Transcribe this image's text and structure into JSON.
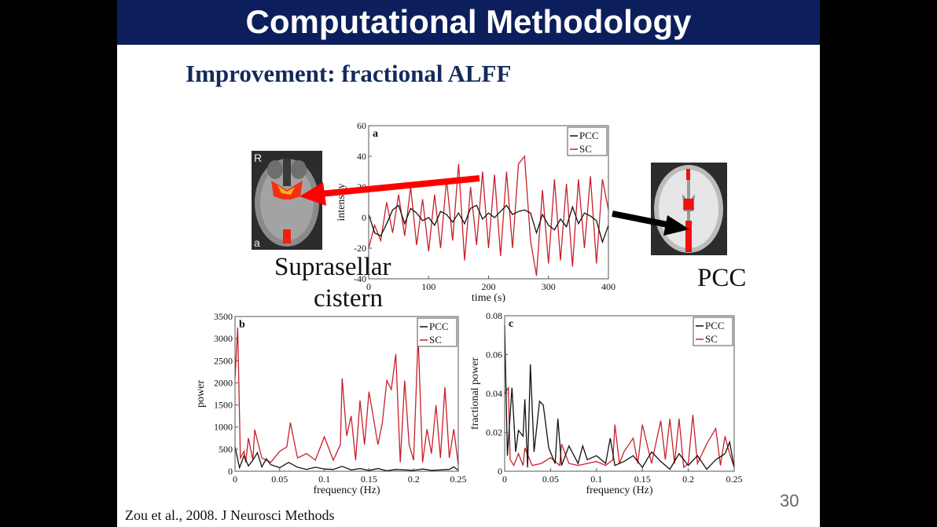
{
  "slide": {
    "title": "Computational Methodology",
    "subtitle": "Improvement: fractional ALFF",
    "label_left_1": "Suprasellar",
    "label_left_2": "cistern",
    "label_right": "PCC",
    "footer": "Zou et al., 2008. J Neurosci Methods",
    "page_number": "30",
    "colors": {
      "title_bg": "#0c1f5c",
      "subtitle": "#142a5e",
      "pcc": "#111111",
      "sc": "#c8202a",
      "arrow_red": "#ff0000"
    }
  },
  "chart_data": [
    {
      "type": "line",
      "panel": "a",
      "xlabel": "time (s)",
      "ylabel": "intensity",
      "xlim": [
        0,
        400
      ],
      "ylim": [
        -40,
        60
      ],
      "xticks": [
        0,
        100,
        200,
        300,
        400
      ],
      "yticks": [
        -40,
        -20,
        0,
        20,
        40,
        60
      ],
      "legend": [
        "PCC",
        "SC"
      ],
      "legend_position": "upper right",
      "series": [
        {
          "name": "PCC",
          "x": [
            0,
            10,
            20,
            30,
            40,
            50,
            60,
            70,
            80,
            90,
            100,
            110,
            120,
            130,
            140,
            150,
            160,
            170,
            180,
            190,
            200,
            210,
            220,
            230,
            240,
            250,
            260,
            270,
            280,
            290,
            300,
            310,
            320,
            330,
            340,
            350,
            360,
            370,
            380,
            390,
            400
          ],
          "values": [
            2,
            -10,
            -12,
            -4,
            5,
            8,
            -4,
            6,
            3,
            -2,
            0,
            -5,
            4,
            2,
            -3,
            3,
            -4,
            6,
            8,
            -1,
            3,
            0,
            4,
            8,
            2,
            4,
            5,
            3,
            -10,
            2,
            -5,
            -8,
            -1,
            -6,
            7,
            -4,
            3,
            1,
            -2,
            -16,
            -5
          ]
        },
        {
          "name": "SC",
          "x": [
            0,
            10,
            20,
            30,
            40,
            50,
            60,
            70,
            80,
            90,
            100,
            110,
            120,
            130,
            140,
            150,
            160,
            170,
            180,
            190,
            200,
            210,
            220,
            230,
            240,
            250,
            260,
            270,
            280,
            290,
            300,
            310,
            320,
            330,
            340,
            350,
            360,
            370,
            380,
            390,
            400
          ],
          "values": [
            -20,
            -5,
            -15,
            10,
            -10,
            15,
            -12,
            20,
            -18,
            12,
            -22,
            15,
            -20,
            25,
            -15,
            35,
            -28,
            20,
            -18,
            30,
            -20,
            28,
            -25,
            30,
            -20,
            35,
            40,
            -15,
            -38,
            18,
            -30,
            25,
            -28,
            22,
            -32,
            25,
            -20,
            27,
            -30,
            25,
            5
          ]
        }
      ]
    },
    {
      "type": "line",
      "panel": "b",
      "xlabel": "frequency (Hz)",
      "ylabel": "power",
      "xlim": [
        0,
        0.25
      ],
      "ylim": [
        0,
        3500
      ],
      "xticks": [
        0,
        0.05,
        0.1,
        0.15,
        0.2,
        0.25
      ],
      "yticks": [
        0,
        500,
        1000,
        1500,
        2000,
        2500,
        3000,
        3500
      ],
      "legend": [
        "PCC",
        "SC"
      ],
      "legend_position": "upper right",
      "series": [
        {
          "name": "PCC",
          "x": [
            0,
            0.005,
            0.01,
            0.015,
            0.02,
            0.025,
            0.03,
            0.035,
            0.04,
            0.05,
            0.06,
            0.07,
            0.08,
            0.09,
            0.1,
            0.11,
            0.12,
            0.13,
            0.14,
            0.15,
            0.16,
            0.17,
            0.18,
            0.19,
            0.2,
            0.21,
            0.22,
            0.23,
            0.24,
            0.245,
            0.25
          ],
          "values": [
            550,
            80,
            350,
            120,
            250,
            420,
            100,
            280,
            150,
            80,
            200,
            90,
            40,
            90,
            50,
            40,
            110,
            30,
            60,
            20,
            60,
            10,
            40,
            30,
            20,
            50,
            20,
            30,
            40,
            100,
            20
          ]
        },
        {
          "name": "SC",
          "x": [
            0,
            0.003,
            0.006,
            0.01,
            0.012,
            0.015,
            0.02,
            0.022,
            0.03,
            0.04,
            0.05,
            0.058,
            0.062,
            0.07,
            0.08,
            0.09,
            0.1,
            0.11,
            0.118,
            0.12,
            0.125,
            0.13,
            0.135,
            0.14,
            0.145,
            0.15,
            0.16,
            0.165,
            0.17,
            0.175,
            0.18,
            0.185,
            0.19,
            0.195,
            0.2,
            0.205,
            0.21,
            0.215,
            0.22,
            0.225,
            0.23,
            0.235,
            0.24,
            0.245,
            0.25
          ],
          "values": [
            2100,
            3250,
            300,
            450,
            200,
            750,
            250,
            940,
            300,
            200,
            450,
            550,
            1100,
            300,
            400,
            250,
            780,
            250,
            600,
            2100,
            800,
            1250,
            250,
            1600,
            600,
            1800,
            600,
            1100,
            2050,
            1850,
            2650,
            200,
            2050,
            600,
            250,
            3050,
            200,
            950,
            400,
            1500,
            300,
            1900,
            300,
            950,
            150
          ]
        }
      ]
    },
    {
      "type": "line",
      "panel": "c",
      "xlabel": "frequency (Hz)",
      "ylabel": "fractional power",
      "xlim": [
        0,
        0.25
      ],
      "ylim": [
        0,
        0.08
      ],
      "xticks": [
        0,
        0.05,
        0.1,
        0.15,
        0.2,
        0.25
      ],
      "yticks": [
        0,
        0.02,
        0.04,
        0.06,
        0.08
      ],
      "legend": [
        "PCC",
        "SC"
      ],
      "legend_position": "upper right",
      "series": [
        {
          "name": "PCC",
          "x": [
            0,
            0.003,
            0.008,
            0.012,
            0.015,
            0.02,
            0.022,
            0.025,
            0.028,
            0.032,
            0.038,
            0.042,
            0.048,
            0.055,
            0.058,
            0.062,
            0.07,
            0.08,
            0.085,
            0.09,
            0.1,
            0.11,
            0.115,
            0.12,
            0.13,
            0.14,
            0.15,
            0.16,
            0.17,
            0.18,
            0.19,
            0.2,
            0.21,
            0.22,
            0.23,
            0.24,
            0.245,
            0.25
          ],
          "values": [
            0.075,
            0.008,
            0.043,
            0.01,
            0.021,
            0.018,
            0.037,
            0.002,
            0.055,
            0.01,
            0.036,
            0.034,
            0.012,
            0.004,
            0.027,
            0.003,
            0.013,
            0.004,
            0.013,
            0.006,
            0.008,
            0.004,
            0.017,
            0.003,
            0.005,
            0.008,
            0.002,
            0.01,
            0.005,
            0.001,
            0.009,
            0.003,
            0.008,
            0.001,
            0.006,
            0.009,
            0.015,
            0.002
          ]
        },
        {
          "name": "SC",
          "x": [
            0,
            0.004,
            0.006,
            0.01,
            0.015,
            0.02,
            0.022,
            0.03,
            0.04,
            0.05,
            0.06,
            0.062,
            0.07,
            0.08,
            0.09,
            0.1,
            0.11,
            0.118,
            0.12,
            0.125,
            0.13,
            0.14,
            0.145,
            0.15,
            0.16,
            0.165,
            0.17,
            0.175,
            0.18,
            0.185,
            0.19,
            0.195,
            0.2,
            0.205,
            0.21,
            0.22,
            0.23,
            0.235,
            0.24,
            0.245,
            0.25
          ],
          "values": [
            0.04,
            0.043,
            0.006,
            0.003,
            0.009,
            0.003,
            0.012,
            0.003,
            0.004,
            0.007,
            0.003,
            0.014,
            0.004,
            0.003,
            0.004,
            0.005,
            0.003,
            0.006,
            0.024,
            0.004,
            0.01,
            0.017,
            0.004,
            0.024,
            0.004,
            0.015,
            0.026,
            0.006,
            0.027,
            0.004,
            0.027,
            0.002,
            0.004,
            0.029,
            0.004,
            0.014,
            0.022,
            0.003,
            0.018,
            0.009,
            0.002
          ]
        }
      ]
    }
  ]
}
